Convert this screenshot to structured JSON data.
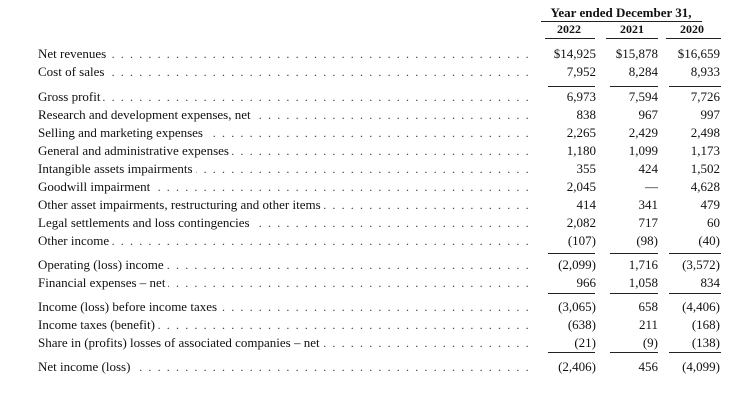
{
  "header": {
    "period": "Year ended December 31,",
    "years": [
      "2022",
      "2021",
      "2020"
    ]
  },
  "rows": [
    {
      "label": "Net revenues",
      "v": [
        "$14,925",
        "$15,878",
        "$16,659"
      ]
    },
    {
      "label": "Cost of sales",
      "v": [
        "7,952",
        "8,284",
        "8,933"
      ]
    },
    {
      "label": "Gross profit",
      "v": [
        "6,973",
        "7,594",
        "7,726"
      ]
    },
    {
      "label": "Research and development expenses, net",
      "v": [
        "838",
        "967",
        "997"
      ]
    },
    {
      "label": "Selling and marketing expenses",
      "v": [
        "2,265",
        "2,429",
        "2,498"
      ]
    },
    {
      "label": "General and administrative expenses",
      "v": [
        "1,180",
        "1,099",
        "1,173"
      ]
    },
    {
      "label": "Intangible assets impairments",
      "v": [
        "355",
        "424",
        "1,502"
      ]
    },
    {
      "label": "Goodwill impairment",
      "v": [
        "2,045",
        "—",
        "4,628"
      ]
    },
    {
      "label": "Other asset impairments, restructuring and other items",
      "v": [
        "414",
        "341",
        "479"
      ]
    },
    {
      "label": "Legal settlements and loss contingencies",
      "v": [
        "2,082",
        "717",
        "60"
      ]
    },
    {
      "label": "Other income",
      "v": [
        "(107)",
        "(98)",
        "(40)"
      ]
    },
    {
      "label": "Operating (loss) income",
      "v": [
        "(2,099)",
        "1,716",
        "(3,572)"
      ]
    },
    {
      "label": "Financial expenses – net",
      "v": [
        "966",
        "1,058",
        "834"
      ]
    },
    {
      "label": "Income (loss) before income taxes",
      "v": [
        "(3,065)",
        "658",
        "(4,406)"
      ]
    },
    {
      "label": "Income taxes (benefit)",
      "v": [
        "(638)",
        "211",
        "(168)"
      ]
    },
    {
      "label": "Share in (profits) losses of associated companies – net",
      "v": [
        "(21)",
        "(9)",
        "(138)"
      ]
    },
    {
      "label": "Net income (loss)",
      "v": [
        "(2,406)",
        "456",
        "(4,099)"
      ]
    }
  ]
}
